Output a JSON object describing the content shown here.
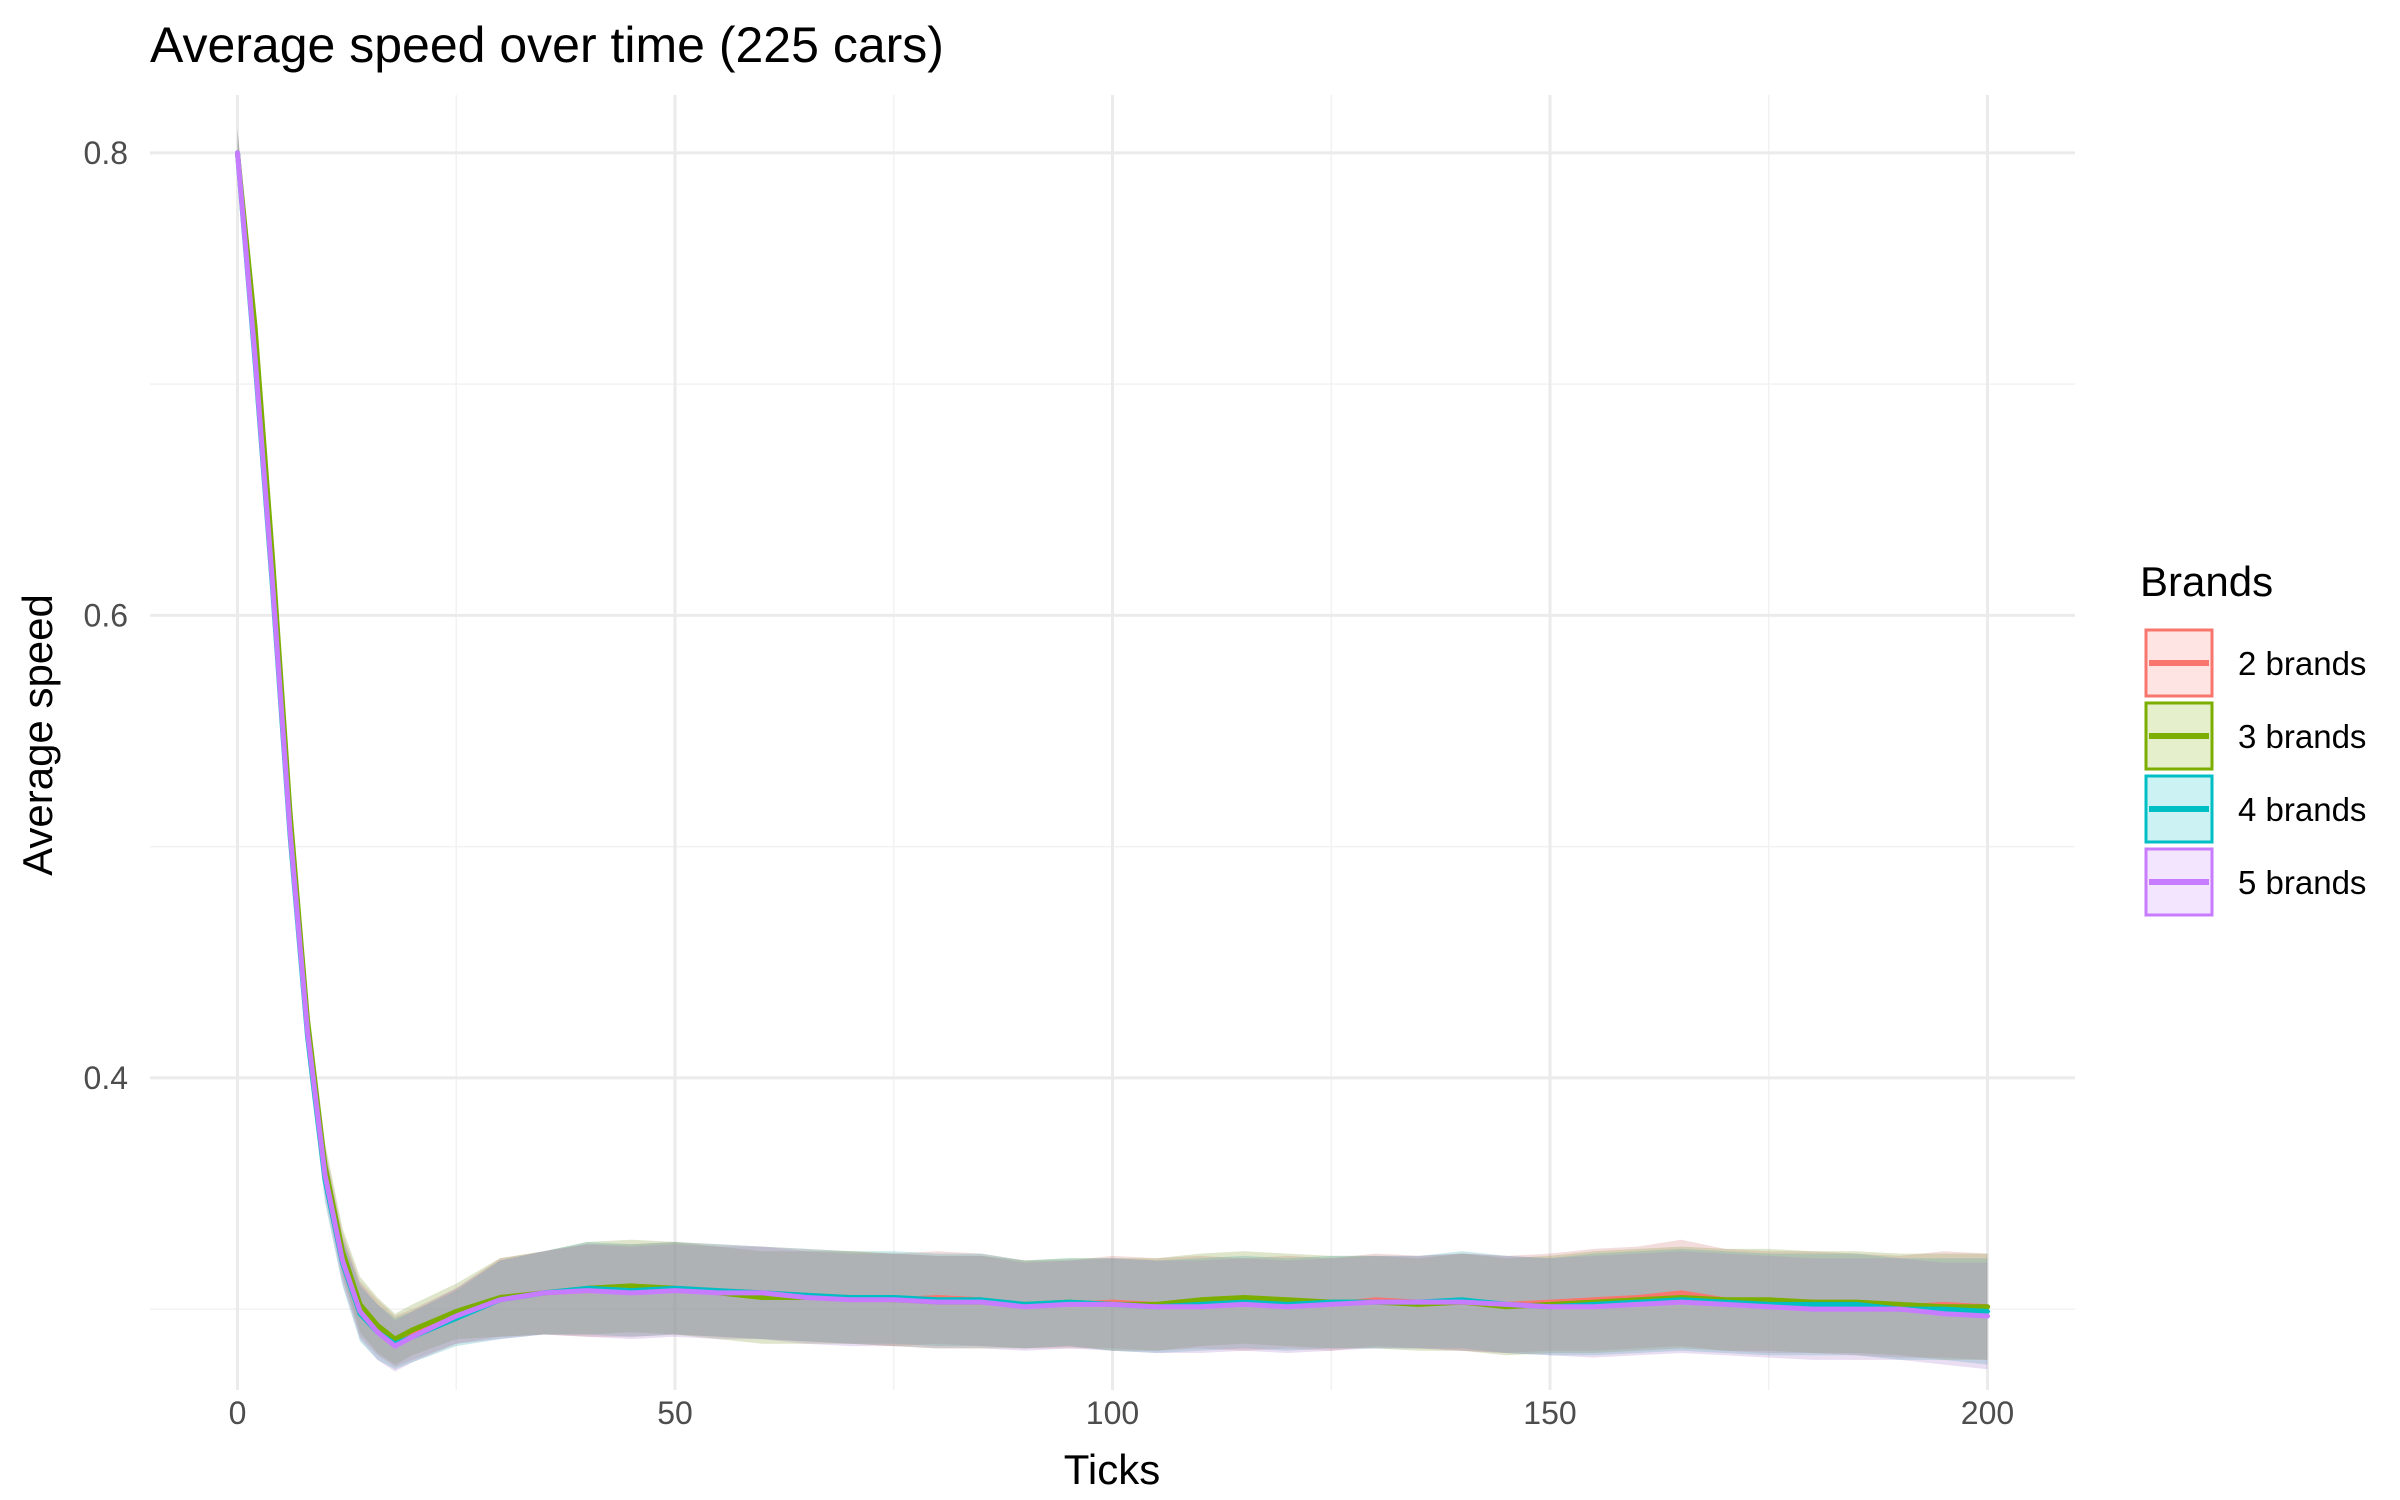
{
  "chart_data": {
    "type": "line",
    "title": "Average speed over time (225 cars)",
    "xlabel": "Ticks",
    "ylabel": "Average speed",
    "xlim": [
      -10,
      210
    ],
    "ylim": [
      0.265,
      0.825
    ],
    "x_ticks": [
      0,
      50,
      100,
      150,
      200
    ],
    "y_ticks": [
      0.4,
      0.6,
      0.8
    ],
    "grid": true,
    "legend": {
      "title": "Brands",
      "position": "right"
    },
    "ribbon": "confidence band (semi-transparent fill) per series",
    "series": [
      {
        "name": "2 brands",
        "color": "#F8766D",
        "x": [
          0,
          2,
          4,
          6,
          8,
          10,
          12,
          14,
          16,
          18,
          20,
          25,
          30,
          35,
          40,
          45,
          50,
          55,
          60,
          65,
          70,
          75,
          80,
          85,
          90,
          95,
          100,
          105,
          110,
          115,
          120,
          125,
          130,
          135,
          140,
          145,
          150,
          155,
          160,
          165,
          170,
          175,
          180,
          185,
          190,
          195,
          200
        ],
        "y": [
          0.8,
          0.72,
          0.62,
          0.51,
          0.42,
          0.36,
          0.323,
          0.3,
          0.292,
          0.286,
          0.289,
          0.297,
          0.305,
          0.307,
          0.308,
          0.308,
          0.309,
          0.308,
          0.307,
          0.306,
          0.305,
          0.304,
          0.305,
          0.304,
          0.302,
          0.302,
          0.303,
          0.302,
          0.303,
          0.302,
          0.303,
          0.302,
          0.304,
          0.303,
          0.303,
          0.302,
          0.303,
          0.304,
          0.305,
          0.307,
          0.304,
          0.303,
          0.303,
          0.302,
          0.301,
          0.302,
          0.301
        ],
        "lower": [
          0.79,
          0.71,
          0.61,
          0.5,
          0.41,
          0.35,
          0.313,
          0.288,
          0.28,
          0.275,
          0.278,
          0.285,
          0.288,
          0.289,
          0.288,
          0.288,
          0.289,
          0.288,
          0.287,
          0.286,
          0.285,
          0.284,
          0.285,
          0.284,
          0.283,
          0.283,
          0.283,
          0.282,
          0.283,
          0.282,
          0.283,
          0.282,
          0.284,
          0.283,
          0.282,
          0.281,
          0.282,
          0.282,
          0.283,
          0.284,
          0.282,
          0.281,
          0.281,
          0.28,
          0.279,
          0.279,
          0.278
        ],
        "upper": [
          0.81,
          0.73,
          0.63,
          0.52,
          0.43,
          0.37,
          0.333,
          0.312,
          0.304,
          0.297,
          0.3,
          0.309,
          0.322,
          0.325,
          0.328,
          0.328,
          0.329,
          0.328,
          0.327,
          0.326,
          0.325,
          0.324,
          0.325,
          0.324,
          0.321,
          0.321,
          0.323,
          0.322,
          0.323,
          0.322,
          0.323,
          0.322,
          0.324,
          0.323,
          0.324,
          0.323,
          0.324,
          0.326,
          0.327,
          0.33,
          0.326,
          0.325,
          0.325,
          0.324,
          0.323,
          0.325,
          0.324
        ]
      },
      {
        "name": "3 brands",
        "color": "#7CAE00",
        "x": [
          0,
          2,
          4,
          6,
          8,
          10,
          12,
          14,
          16,
          18,
          20,
          25,
          30,
          35,
          40,
          45,
          50,
          55,
          60,
          65,
          70,
          75,
          80,
          85,
          90,
          95,
          100,
          105,
          110,
          115,
          120,
          125,
          130,
          135,
          140,
          145,
          150,
          155,
          160,
          165,
          170,
          175,
          180,
          185,
          190,
          195,
          200
        ],
        "y": [
          0.8,
          0.725,
          0.625,
          0.515,
          0.425,
          0.362,
          0.325,
          0.302,
          0.293,
          0.287,
          0.291,
          0.299,
          0.305,
          0.307,
          0.309,
          0.31,
          0.309,
          0.307,
          0.305,
          0.305,
          0.305,
          0.304,
          0.303,
          0.303,
          0.302,
          0.303,
          0.302,
          0.302,
          0.304,
          0.305,
          0.304,
          0.303,
          0.303,
          0.302,
          0.303,
          0.301,
          0.302,
          0.303,
          0.304,
          0.305,
          0.304,
          0.304,
          0.303,
          0.303,
          0.302,
          0.301,
          0.301
        ],
        "lower": [
          0.79,
          0.715,
          0.615,
          0.505,
          0.415,
          0.352,
          0.315,
          0.29,
          0.281,
          0.276,
          0.28,
          0.287,
          0.288,
          0.289,
          0.289,
          0.29,
          0.289,
          0.287,
          0.285,
          0.285,
          0.285,
          0.284,
          0.283,
          0.283,
          0.283,
          0.284,
          0.282,
          0.282,
          0.284,
          0.285,
          0.284,
          0.283,
          0.283,
          0.282,
          0.282,
          0.28,
          0.281,
          0.281,
          0.282,
          0.283,
          0.282,
          0.282,
          0.281,
          0.281,
          0.28,
          0.278,
          0.278
        ],
        "upper": [
          0.81,
          0.735,
          0.635,
          0.525,
          0.435,
          0.372,
          0.335,
          0.314,
          0.305,
          0.298,
          0.302,
          0.311,
          0.322,
          0.325,
          0.329,
          0.33,
          0.329,
          0.327,
          0.325,
          0.325,
          0.325,
          0.324,
          0.323,
          0.323,
          0.321,
          0.322,
          0.322,
          0.322,
          0.324,
          0.325,
          0.324,
          0.323,
          0.323,
          0.322,
          0.324,
          0.322,
          0.323,
          0.325,
          0.326,
          0.327,
          0.326,
          0.326,
          0.325,
          0.325,
          0.324,
          0.324,
          0.324
        ]
      },
      {
        "name": "4 brands",
        "color": "#00BFC4",
        "x": [
          0,
          2,
          4,
          6,
          8,
          10,
          12,
          14,
          16,
          18,
          20,
          25,
          30,
          35,
          40,
          45,
          50,
          55,
          60,
          65,
          70,
          75,
          80,
          85,
          90,
          95,
          100,
          105,
          110,
          115,
          120,
          125,
          130,
          135,
          140,
          145,
          150,
          155,
          160,
          165,
          170,
          175,
          180,
          185,
          190,
          195,
          200
        ],
        "y": [
          0.8,
          0.71,
          0.612,
          0.505,
          0.418,
          0.356,
          0.32,
          0.298,
          0.29,
          0.285,
          0.288,
          0.296,
          0.304,
          0.307,
          0.309,
          0.308,
          0.309,
          0.308,
          0.307,
          0.306,
          0.305,
          0.305,
          0.304,
          0.304,
          0.302,
          0.303,
          0.302,
          0.301,
          0.302,
          0.303,
          0.302,
          0.303,
          0.303,
          0.303,
          0.304,
          0.302,
          0.301,
          0.302,
          0.303,
          0.304,
          0.303,
          0.302,
          0.302,
          0.302,
          0.3,
          0.3,
          0.299
        ],
        "lower": [
          0.79,
          0.7,
          0.602,
          0.495,
          0.408,
          0.346,
          0.31,
          0.286,
          0.278,
          0.274,
          0.277,
          0.284,
          0.287,
          0.289,
          0.289,
          0.288,
          0.289,
          0.288,
          0.287,
          0.286,
          0.285,
          0.285,
          0.284,
          0.284,
          0.283,
          0.284,
          0.282,
          0.281,
          0.282,
          0.283,
          0.282,
          0.283,
          0.283,
          0.283,
          0.283,
          0.281,
          0.28,
          0.28,
          0.281,
          0.282,
          0.281,
          0.28,
          0.28,
          0.28,
          0.278,
          0.278,
          0.276
        ],
        "upper": [
          0.81,
          0.72,
          0.622,
          0.515,
          0.428,
          0.366,
          0.33,
          0.31,
          0.302,
          0.296,
          0.299,
          0.308,
          0.321,
          0.325,
          0.329,
          0.328,
          0.329,
          0.328,
          0.327,
          0.326,
          0.325,
          0.325,
          0.324,
          0.324,
          0.321,
          0.322,
          0.322,
          0.321,
          0.322,
          0.323,
          0.322,
          0.323,
          0.323,
          0.323,
          0.325,
          0.323,
          0.322,
          0.324,
          0.325,
          0.326,
          0.325,
          0.324,
          0.324,
          0.324,
          0.322,
          0.322,
          0.322
        ]
      },
      {
        "name": "5 brands",
        "color": "#C77CFF",
        "x": [
          0,
          2,
          4,
          6,
          8,
          10,
          12,
          14,
          16,
          18,
          20,
          25,
          30,
          35,
          40,
          45,
          50,
          55,
          60,
          65,
          70,
          75,
          80,
          85,
          90,
          95,
          100,
          105,
          110,
          115,
          120,
          125,
          130,
          135,
          140,
          145,
          150,
          155,
          160,
          165,
          170,
          175,
          180,
          185,
          190,
          195,
          200
        ],
        "y": [
          0.8,
          0.712,
          0.614,
          0.507,
          0.42,
          0.358,
          0.321,
          0.299,
          0.29,
          0.284,
          0.288,
          0.297,
          0.304,
          0.307,
          0.308,
          0.307,
          0.308,
          0.307,
          0.307,
          0.305,
          0.304,
          0.304,
          0.303,
          0.303,
          0.301,
          0.302,
          0.302,
          0.301,
          0.301,
          0.302,
          0.301,
          0.302,
          0.303,
          0.303,
          0.303,
          0.302,
          0.301,
          0.301,
          0.302,
          0.303,
          0.302,
          0.301,
          0.3,
          0.3,
          0.3,
          0.298,
          0.297
        ],
        "lower": [
          0.79,
          0.702,
          0.604,
          0.497,
          0.41,
          0.348,
          0.311,
          0.287,
          0.278,
          0.273,
          0.277,
          0.285,
          0.287,
          0.289,
          0.288,
          0.287,
          0.288,
          0.287,
          0.287,
          0.285,
          0.284,
          0.284,
          0.283,
          0.283,
          0.282,
          0.283,
          0.282,
          0.281,
          0.281,
          0.282,
          0.281,
          0.282,
          0.283,
          0.283,
          0.282,
          0.281,
          0.28,
          0.279,
          0.28,
          0.281,
          0.28,
          0.279,
          0.278,
          0.278,
          0.278,
          0.276,
          0.274
        ],
        "upper": [
          0.81,
          0.722,
          0.624,
          0.517,
          0.43,
          0.368,
          0.331,
          0.311,
          0.302,
          0.295,
          0.299,
          0.309,
          0.321,
          0.325,
          0.328,
          0.327,
          0.328,
          0.327,
          0.327,
          0.325,
          0.324,
          0.324,
          0.323,
          0.323,
          0.32,
          0.321,
          0.322,
          0.321,
          0.321,
          0.322,
          0.321,
          0.322,
          0.323,
          0.323,
          0.324,
          0.323,
          0.322,
          0.323,
          0.324,
          0.325,
          0.324,
          0.323,
          0.322,
          0.322,
          0.322,
          0.32,
          0.32
        ]
      }
    ]
  }
}
